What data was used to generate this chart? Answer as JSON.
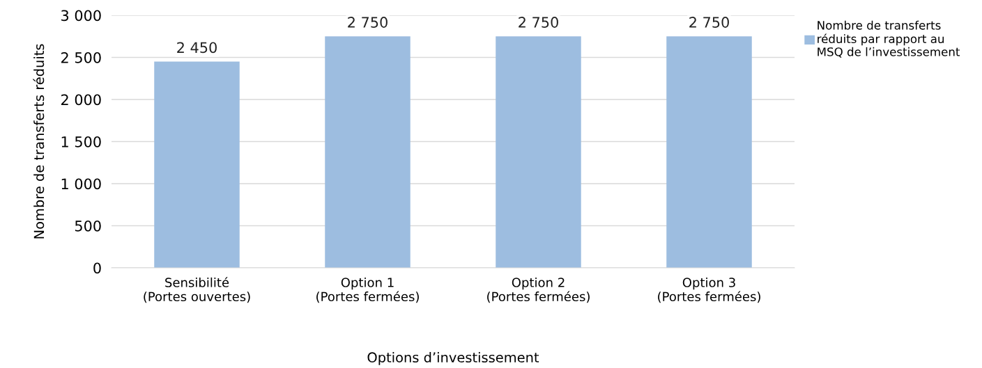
{
  "chart_data": {
    "type": "bar",
    "categories": [
      "Sensibilité\n(Portes ouvertes)",
      "Option 1\n(Portes fermées)",
      "Option 2\n(Portes fermées)",
      "Option 3\n(Portes fermées)"
    ],
    "series": [
      {
        "name": "Nombre de transferts\nréduits par rapport au\nMSQ de l’investissement",
        "color": "#9dbde0",
        "values": [
          2450,
          2750,
          2750,
          2750
        ]
      }
    ],
    "value_labels": [
      "2 450",
      "2 750",
      "2 750",
      "2 750"
    ],
    "xlabel": "Options d’investissement",
    "ylabel": "Nombre de transferts réduits",
    "ylim": [
      0,
      3000
    ],
    "yticks": [
      {
        "value": 0,
        "label": "0"
      },
      {
        "value": 500,
        "label": "500"
      },
      {
        "value": 1000,
        "label": "1 000"
      },
      {
        "value": 1500,
        "label": "1 500"
      },
      {
        "value": 2000,
        "label": "2 000"
      },
      {
        "value": 2500,
        "label": "2 500"
      },
      {
        "value": 3000,
        "label": "3 000"
      }
    ],
    "grid": "y",
    "legend": "top right"
  }
}
